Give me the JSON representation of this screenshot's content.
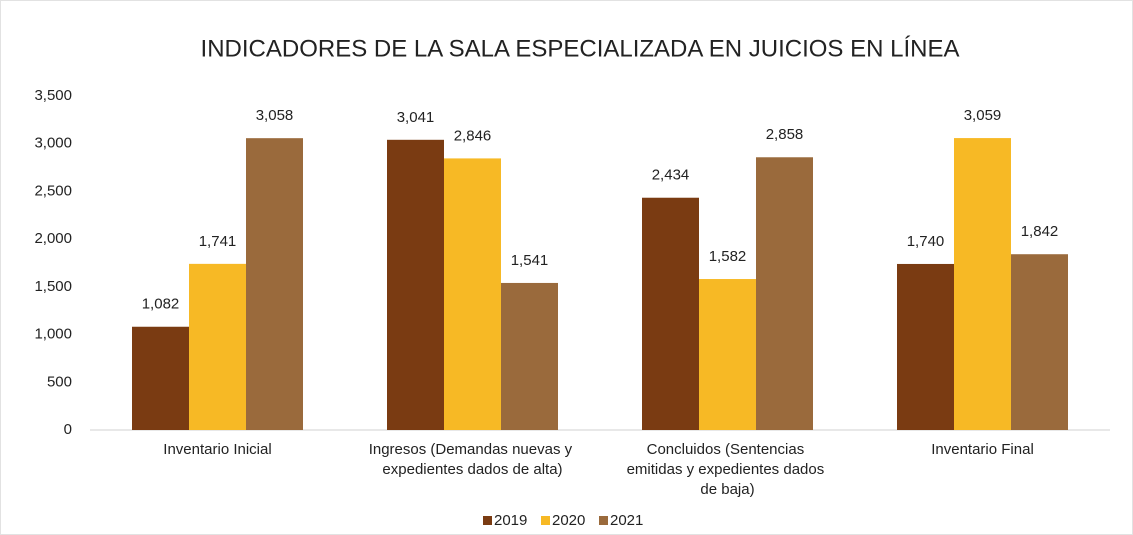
{
  "chart_data": {
    "type": "bar",
    "title": "INDICADORES DE LA SALA ESPECIALIZADA EN JUICIOS EN LÍNEA",
    "categories": [
      "Inventario Inicial",
      "Ingresos (Demandas nuevas y expedientes dados de alta)",
      "Concluidos (Sentencias emitidas y expedientes dados de baja)",
      "Inventario Final"
    ],
    "series": [
      {
        "name": "2019",
        "color": "#7a3b12",
        "values": [
          1082,
          3041,
          2434,
          1740
        ],
        "value_labels": [
          "1,082",
          "3,041",
          "2,434",
          "1,740"
        ]
      },
      {
        "name": "2020",
        "color": "#f7b925",
        "values": [
          1741,
          2846,
          1582,
          3059
        ],
        "value_labels": [
          "1,741",
          "2,846",
          "1,582",
          "3,059"
        ]
      },
      {
        "name": "2021",
        "color": "#9a6a3c",
        "values": [
          3058,
          1541,
          2858,
          1842
        ],
        "value_labels": [
          "3,058",
          "1,541",
          "2,858",
          "1,842"
        ]
      }
    ],
    "ylim": [
      0,
      3500
    ],
    "yticks": [
      0,
      500,
      {
        "value": 1000,
        "label": "1,000"
      },
      {
        "value": 1500,
        "label": "1,500"
      },
      {
        "value": 2000,
        "label": "2,000"
      },
      {
        "value": 2500,
        "label": "2,500"
      },
      {
        "value": 3000,
        "label": "3,000"
      },
      {
        "value": 3500,
        "label": "3,500"
      }
    ],
    "grid": false,
    "legend": "bottom"
  }
}
